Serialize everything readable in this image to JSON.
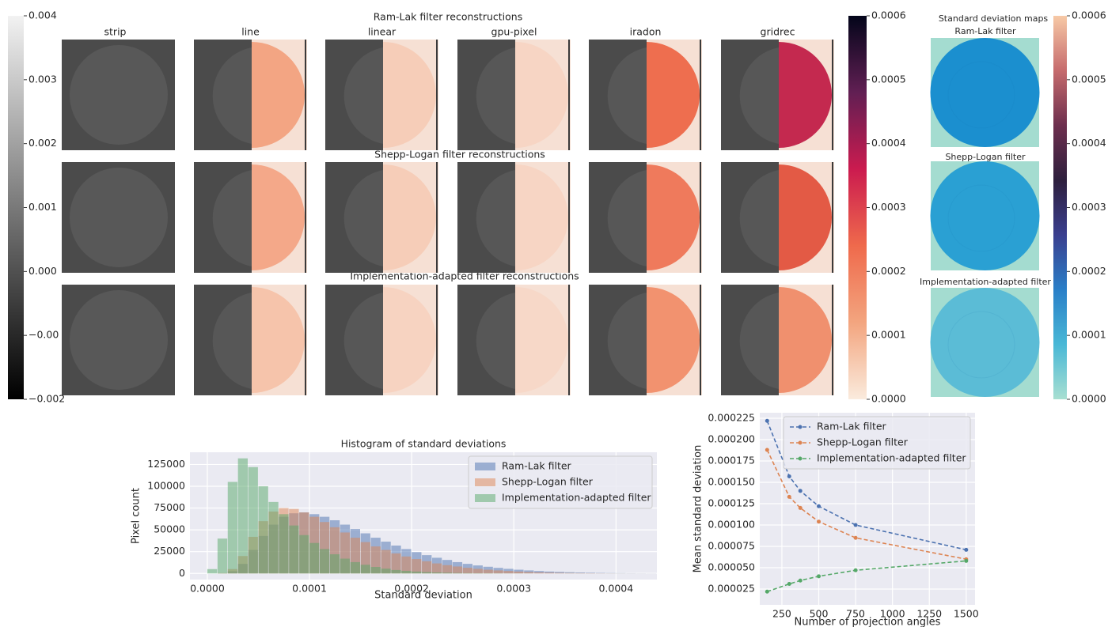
{
  "reconstructions": {
    "row_titles": [
      "Ram-Lak filter reconstructions",
      "Shepp-Logan filter reconstructions",
      "Implementation-adapted filter reconstructions"
    ],
    "column_titles": [
      "strip",
      "line",
      "linear",
      "gpu-pixel",
      "iradon",
      "gridrec"
    ]
  },
  "std_maps": {
    "title": "Standard deviation maps",
    "panel_titles": [
      "Ram-Lak filter",
      "Shepp-Logan filter",
      "Implementation-adapted filter"
    ]
  },
  "colorbars": [
    {
      "lim": [
        -0.002,
        0.004
      ],
      "colors": [
        "#000000",
        "#f2f2f2"
      ],
      "ticks": [
        0.004,
        0.003,
        0.002,
        0.001,
        {
          "value": 0,
          "label": "0.000"
        },
        {
          "value": -0.001,
          "label": "−0.00"
        },
        {
          "value": -0.002,
          "label": "−0.002"
        }
      ]
    },
    {
      "lim": [
        0,
        0.0006
      ],
      "colors": [
        "#faebdd",
        "#f3a57f",
        "#ef6a4c",
        "#cb1b4f",
        "#611f53",
        "#03051a"
      ],
      "ticks": [
        0.0006,
        0.0005,
        0.0004,
        0.0003,
        0.0002,
        0.0001,
        {
          "value": 0,
          "label": "0.0000"
        }
      ]
    },
    {
      "lim": [
        0,
        0.0006
      ],
      "colors": [
        "#a8dfd1",
        "#49b8d6",
        "#2a7fc8",
        "#3a3f8f",
        "#2e1f3d",
        "#6d2f4e",
        "#c66b6d",
        "#f7c9a6"
      ],
      "ticks": [
        0.0006,
        0.0005,
        0.0004,
        0.0003,
        0.0002,
        0.0001,
        {
          "value": 0,
          "label": "0.0000"
        }
      ]
    }
  ],
  "chart_data": [
    {
      "type": "histogram",
      "title": "Histogram of standard deviations",
      "x_label": "Standard deviation",
      "y_label": "Pixel count",
      "bins": [
        0,
        1e-05,
        2e-05,
        3e-05,
        4e-05,
        5e-05,
        6e-05,
        7e-05,
        8e-05,
        9e-05,
        0.0001,
        0.00011,
        0.00012,
        0.00013,
        0.00014,
        0.00015,
        0.00016,
        0.00017,
        0.00018,
        0.00019,
        0.0002,
        0.00021,
        0.00022,
        0.00023,
        0.00024,
        0.00025,
        0.00026,
        0.00027,
        0.00028,
        0.00029,
        0.0003,
        0.00031,
        0.00032,
        0.00033,
        0.00034,
        0.00035,
        0.00036,
        0.00037,
        0.00038,
        0.00039,
        0.0004,
        0.00041,
        0.00042,
        0.00043,
        0.00044
      ],
      "series": [
        {
          "name": "Ram-Lak filter",
          "color": "#4c72b0",
          "values": [
            0,
            200,
            2500,
            11000,
            27000,
            43000,
            56000,
            65000,
            69000,
            70000,
            68000,
            65000,
            61000,
            56000,
            51000,
            46000,
            41000,
            36500,
            32000,
            28000,
            24500,
            21000,
            18000,
            15500,
            13000,
            11000,
            9200,
            7700,
            6400,
            5300,
            4300,
            3500,
            2800,
            2200,
            1800,
            1400,
            1100,
            850,
            650,
            500,
            380,
            280,
            200,
            150
          ]
        },
        {
          "name": "Shepp-Logan filter",
          "color": "#dd8452",
          "values": [
            0,
            500,
            5000,
            20000,
            42000,
            60000,
            71000,
            75000,
            74000,
            70000,
            65000,
            59000,
            53000,
            47000,
            41000,
            36000,
            31000,
            27000,
            23000,
            19500,
            16500,
            14000,
            11500,
            9500,
            8000,
            6500,
            5300,
            4300,
            3500,
            2800,
            2200,
            1700,
            1300,
            1000,
            750,
            550,
            400,
            300,
            200,
            150,
            100,
            70,
            50,
            30
          ]
        },
        {
          "name": "Implementation-adapted filter",
          "color": "#55a868",
          "values": [
            5000,
            40000,
            105000,
            132000,
            122000,
            100000,
            82000,
            68000,
            55000,
            44000,
            35000,
            28000,
            22000,
            17000,
            13000,
            10000,
            7500,
            5500,
            4000,
            3000,
            2200,
            1600,
            1200,
            900,
            600,
            400,
            300,
            200,
            150,
            100,
            60,
            30,
            0,
            0,
            0,
            0,
            0,
            0,
            0,
            0,
            0,
            0,
            0,
            0
          ]
        }
      ],
      "alpha": 0.5,
      "xlim": [
        -1.7e-05,
        0.00044
      ],
      "ylim": [
        -7000,
        139000
      ],
      "xticks": [
        {
          "value": 0,
          "label": "0.0000"
        },
        0.0001,
        0.0002,
        0.0003,
        0.0004
      ],
      "yticks": [
        0,
        25000,
        50000,
        75000,
        100000,
        125000
      ],
      "grid": true,
      "legend": "upper right"
    },
    {
      "type": "line",
      "x_label": "Number of projection angles",
      "y_label": "Mean standard deviation",
      "x": [
        150,
        300,
        375,
        500,
        750,
        1500
      ],
      "series": [
        {
          "name": "Ram-Lak filter",
          "color": "#4c72b0",
          "values": [
            0.000222,
            0.000157,
            0.00014,
            0.000122,
            0.0001,
            7.1e-05
          ]
        },
        {
          "name": "Shepp-Logan filter",
          "color": "#dd8452",
          "values": [
            0.000188,
            0.000133,
            0.00012,
            0.000104,
            8.5e-05,
            6e-05
          ]
        },
        {
          "name": "Implementation-adapted filter",
          "color": "#55a868",
          "values": [
            2.2e-05,
            3.1e-05,
            3.5e-05,
            4e-05,
            4.7e-05,
            5.8e-05
          ]
        }
      ],
      "xlim": [
        100,
        1560
      ],
      "ylim": [
        6.5e-06,
        0.0002315
      ],
      "xticks": [
        250,
        500,
        750,
        1000,
        1250,
        1500
      ],
      "yticks": [
        2.5e-05,
        {
          "value": 5e-05,
          "label": "0.000050"
        },
        7.5e-05,
        {
          "value": 0.0001,
          "label": "0.000100"
        },
        0.000125,
        {
          "value": 0.00015,
          "label": "0.000150"
        },
        0.000175,
        {
          "value": 0.0002,
          "label": "0.000200"
        },
        0.000225
      ],
      "grid": true,
      "legend": "upper left"
    }
  ]
}
